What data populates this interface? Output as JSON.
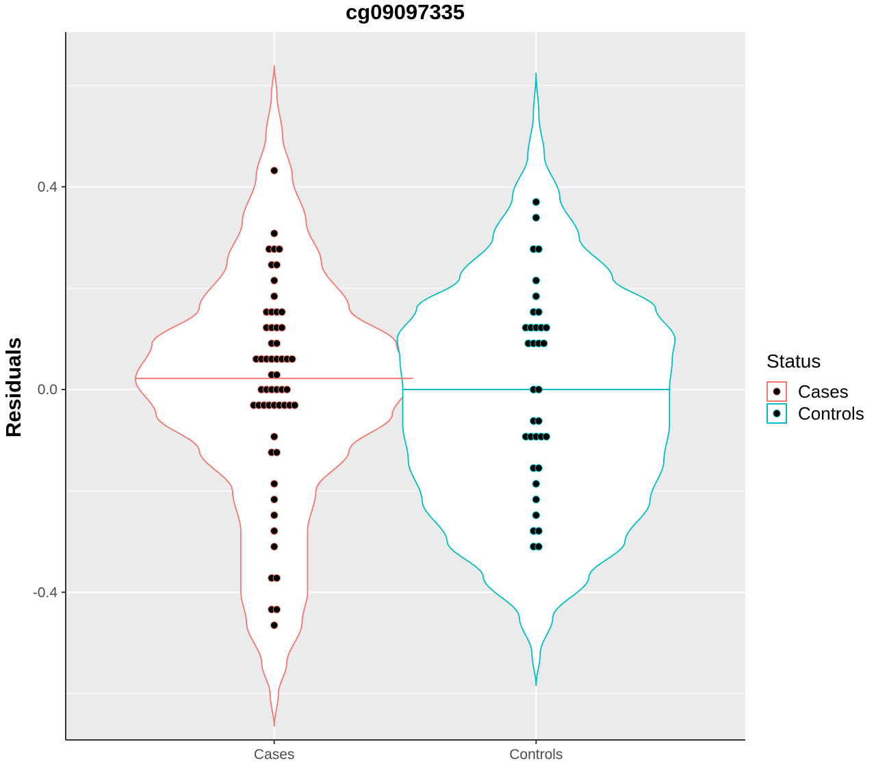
{
  "chart_data": {
    "type": "violin",
    "title": "cg09097335",
    "xlabel": "",
    "ylabel": "Residuals",
    "categories": [
      "Cases",
      "Controls"
    ],
    "ylim": [
      -0.69,
      0.705
    ],
    "yticks": [
      0.4,
      0.0,
      -0.4
    ],
    "ytick_labels": [
      "0.4",
      "0.0",
      "-0.4"
    ],
    "grid": true,
    "legend": {
      "title": "Status",
      "position": "right",
      "entries": [
        "Cases",
        "Controls"
      ]
    },
    "colors": {
      "Cases": "#f8766d",
      "Controls": "#00bfc4",
      "panel": "#ebebeb",
      "grid": "#ffffff",
      "dot": "#000000"
    },
    "series": [
      {
        "name": "Cases",
        "median": 0.022,
        "range": [
          -0.665,
          0.64
        ],
        "density": [
          [
            -0.665,
            0.0
          ],
          [
            -0.6,
            0.03
          ],
          [
            -0.54,
            0.09
          ],
          [
            -0.46,
            0.2
          ],
          [
            -0.4,
            0.24
          ],
          [
            -0.34,
            0.24
          ],
          [
            -0.28,
            0.24
          ],
          [
            -0.2,
            0.3
          ],
          [
            -0.12,
            0.54
          ],
          [
            -0.05,
            0.85
          ],
          [
            0.02,
            1.0
          ],
          [
            0.09,
            0.88
          ],
          [
            0.16,
            0.54
          ],
          [
            0.25,
            0.34
          ],
          [
            0.33,
            0.23
          ],
          [
            0.42,
            0.13
          ],
          [
            0.5,
            0.06
          ],
          [
            0.58,
            0.02
          ],
          [
            0.64,
            0.0
          ]
        ],
        "points": [
          0.432,
          0.308,
          0.277,
          0.277,
          0.277,
          0.246,
          0.246,
          0.215,
          0.184,
          0.153,
          0.153,
          0.153,
          0.153,
          0.122,
          0.122,
          0.122,
          0.122,
          0.091,
          0.091,
          0.06,
          0.06,
          0.06,
          0.06,
          0.06,
          0.06,
          0.06,
          0.06,
          0.029,
          0.029,
          0.0,
          0.0,
          0.0,
          0.0,
          0.0,
          0.0,
          -0.031,
          -0.031,
          -0.031,
          -0.031,
          -0.031,
          -0.031,
          -0.031,
          -0.031,
          -0.031,
          -0.093,
          -0.124,
          -0.124,
          -0.186,
          -0.217,
          -0.248,
          -0.279,
          -0.31,
          -0.372,
          -0.372,
          -0.434,
          -0.434,
          -0.465
        ]
      },
      {
        "name": "Controls",
        "median": 0.0,
        "range": [
          -0.585,
          0.625
        ],
        "density": [
          [
            -0.585,
            0.0
          ],
          [
            -0.52,
            0.03
          ],
          [
            -0.45,
            0.12
          ],
          [
            -0.37,
            0.38
          ],
          [
            -0.3,
            0.64
          ],
          [
            -0.22,
            0.82
          ],
          [
            -0.14,
            0.92
          ],
          [
            -0.07,
            0.96
          ],
          [
            0.0,
            0.96
          ],
          [
            0.06,
            0.98
          ],
          [
            0.1,
            1.0
          ],
          [
            0.16,
            0.86
          ],
          [
            0.22,
            0.55
          ],
          [
            0.3,
            0.31
          ],
          [
            0.38,
            0.17
          ],
          [
            0.46,
            0.06
          ],
          [
            0.54,
            0.02
          ],
          [
            0.625,
            0.0
          ]
        ],
        "points": [
          0.37,
          0.339,
          0.277,
          0.277,
          0.215,
          0.184,
          0.153,
          0.153,
          0.122,
          0.122,
          0.122,
          0.122,
          0.122,
          0.091,
          0.091,
          0.091,
          0.091,
          0.0,
          0.0,
          -0.062,
          -0.062,
          -0.093,
          -0.093,
          -0.093,
          -0.093,
          -0.093,
          -0.155,
          -0.155,
          -0.186,
          -0.217,
          -0.248,
          -0.279,
          -0.279,
          -0.31,
          -0.31
        ]
      }
    ]
  }
}
